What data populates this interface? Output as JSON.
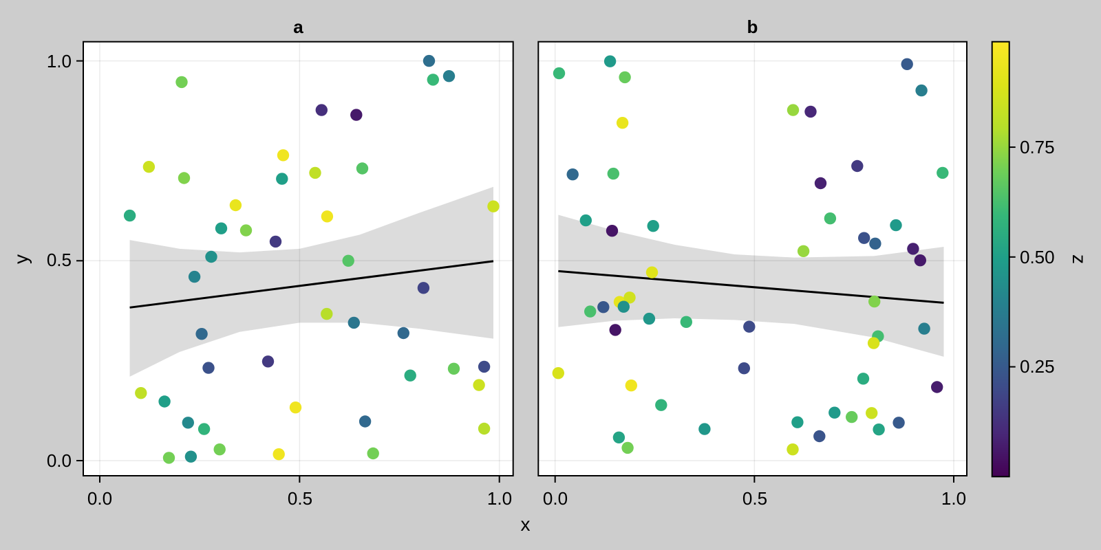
{
  "style": {
    "background": "#cdcdcd",
    "panel_background": "#ffffff",
    "grid_color": "rgba(0,0,0,0.08)",
    "ribbon_color": "#dcdcdc",
    "line_color": "#000000",
    "frame_color": "#000000",
    "viridis_stops": [
      "#440154",
      "#482878",
      "#3e4a89",
      "#31688e",
      "#26828e",
      "#1f9e89",
      "#35b779",
      "#6ece58",
      "#b5de2b",
      "#dce319",
      "#fde725"
    ]
  },
  "chart_data": {
    "type": "scatter",
    "xlabel": "x",
    "ylabel": "y",
    "x_ticks": [
      0.0,
      0.5,
      1.0
    ],
    "x_tick_labels": [
      "0.0",
      "0.5",
      "1.0"
    ],
    "y_ticks": [
      0.0,
      0.5,
      1.0
    ],
    "y_tick_labels": [
      "0.0",
      "0.5",
      "1.0"
    ],
    "grid": true,
    "colorbar": {
      "label": "z",
      "min": 0,
      "max": 0.99,
      "ticks": [
        0.25,
        0.5,
        0.75
      ],
      "tick_labels": [
        "0.25",
        "0.50",
        "0.75"
      ],
      "colormap": "viridis"
    },
    "panels": [
      {
        "title": "a",
        "regression": {
          "x1": 0.075,
          "y1": 0.383,
          "x2": 0.985,
          "y2": 0.499
        },
        "ribbon": [
          [
            0.075,
            0.21,
            0.552
          ],
          [
            0.2,
            0.272,
            0.53
          ],
          [
            0.35,
            0.322,
            0.521
          ],
          [
            0.5,
            0.345,
            0.53
          ],
          [
            0.65,
            0.345,
            0.565
          ],
          [
            0.8,
            0.33,
            0.62
          ],
          [
            0.985,
            0.305,
            0.685
          ]
        ],
        "points": [
          {
            "x": 0.205,
            "y": 0.947,
            "z": 0.7
          },
          {
            "x": 0.459,
            "y": 0.764,
            "z": 0.95
          },
          {
            "x": 0.123,
            "y": 0.735,
            "z": 0.85
          },
          {
            "x": 0.824,
            "y": 1.0,
            "z": 0.32
          },
          {
            "x": 0.834,
            "y": 0.953,
            "z": 0.6
          },
          {
            "x": 0.874,
            "y": 0.962,
            "z": 0.38
          },
          {
            "x": 0.555,
            "y": 0.877,
            "z": 0.12
          },
          {
            "x": 0.642,
            "y": 0.865,
            "z": 0.06
          },
          {
            "x": 0.657,
            "y": 0.731,
            "z": 0.65
          },
          {
            "x": 0.211,
            "y": 0.707,
            "z": 0.72
          },
          {
            "x": 0.456,
            "y": 0.705,
            "z": 0.5
          },
          {
            "x": 0.34,
            "y": 0.639,
            "z": 0.93
          },
          {
            "x": 0.075,
            "y": 0.613,
            "z": 0.55
          },
          {
            "x": 0.304,
            "y": 0.581,
            "z": 0.5
          },
          {
            "x": 0.366,
            "y": 0.576,
            "z": 0.72
          },
          {
            "x": 0.44,
            "y": 0.548,
            "z": 0.15
          },
          {
            "x": 0.279,
            "y": 0.51,
            "z": 0.45
          },
          {
            "x": 0.237,
            "y": 0.46,
            "z": 0.4
          },
          {
            "x": 0.539,
            "y": 0.72,
            "z": 0.82
          },
          {
            "x": 0.569,
            "y": 0.611,
            "z": 0.95
          },
          {
            "x": 0.985,
            "y": 0.636,
            "z": 0.85
          },
          {
            "x": 0.622,
            "y": 0.5,
            "z": 0.65
          },
          {
            "x": 0.81,
            "y": 0.432,
            "z": 0.18
          },
          {
            "x": 0.568,
            "y": 0.367,
            "z": 0.8
          },
          {
            "x": 0.636,
            "y": 0.345,
            "z": 0.35
          },
          {
            "x": 0.255,
            "y": 0.317,
            "z": 0.3
          },
          {
            "x": 0.421,
            "y": 0.248,
            "z": 0.15
          },
          {
            "x": 0.272,
            "y": 0.232,
            "z": 0.22
          },
          {
            "x": 0.103,
            "y": 0.169,
            "z": 0.82
          },
          {
            "x": 0.162,
            "y": 0.148,
            "z": 0.5
          },
          {
            "x": 0.49,
            "y": 0.133,
            "z": 0.95
          },
          {
            "x": 0.221,
            "y": 0.095,
            "z": 0.42
          },
          {
            "x": 0.261,
            "y": 0.079,
            "z": 0.58
          },
          {
            "x": 0.3,
            "y": 0.028,
            "z": 0.7
          },
          {
            "x": 0.173,
            "y": 0.007,
            "z": 0.7
          },
          {
            "x": 0.228,
            "y": 0.01,
            "z": 0.45
          },
          {
            "x": 0.448,
            "y": 0.016,
            "z": 0.95
          },
          {
            "x": 0.76,
            "y": 0.319,
            "z": 0.3
          },
          {
            "x": 0.886,
            "y": 0.23,
            "z": 0.68
          },
          {
            "x": 0.962,
            "y": 0.235,
            "z": 0.2
          },
          {
            "x": 0.777,
            "y": 0.213,
            "z": 0.55
          },
          {
            "x": 0.949,
            "y": 0.189,
            "z": 0.85
          },
          {
            "x": 0.664,
            "y": 0.098,
            "z": 0.3
          },
          {
            "x": 0.962,
            "y": 0.08,
            "z": 0.8
          },
          {
            "x": 0.684,
            "y": 0.018,
            "z": 0.7
          }
        ]
      },
      {
        "title": "b",
        "regression": {
          "x1": 0.008,
          "y1": 0.474,
          "x2": 0.975,
          "y2": 0.395
        },
        "ribbon": [
          [
            0.008,
            0.334,
            0.615
          ],
          [
            0.15,
            0.35,
            0.575
          ],
          [
            0.3,
            0.356,
            0.54
          ],
          [
            0.45,
            0.352,
            0.516
          ],
          [
            0.6,
            0.342,
            0.508
          ],
          [
            0.8,
            0.308,
            0.512
          ],
          [
            0.975,
            0.26,
            0.535
          ]
        ],
        "points": [
          {
            "x": 0.138,
            "y": 0.999,
            "z": 0.48
          },
          {
            "x": 0.01,
            "y": 0.969,
            "z": 0.6
          },
          {
            "x": 0.175,
            "y": 0.959,
            "z": 0.68
          },
          {
            "x": 0.169,
            "y": 0.845,
            "z": 0.93
          },
          {
            "x": 0.044,
            "y": 0.716,
            "z": 0.3
          },
          {
            "x": 0.146,
            "y": 0.718,
            "z": 0.63
          },
          {
            "x": 0.883,
            "y": 0.992,
            "z": 0.25
          },
          {
            "x": 0.919,
            "y": 0.926,
            "z": 0.38
          },
          {
            "x": 0.597,
            "y": 0.877,
            "z": 0.75
          },
          {
            "x": 0.641,
            "y": 0.873,
            "z": 0.1
          },
          {
            "x": 0.758,
            "y": 0.737,
            "z": 0.15
          },
          {
            "x": 0.972,
            "y": 0.72,
            "z": 0.6
          },
          {
            "x": 0.077,
            "y": 0.601,
            "z": 0.5
          },
          {
            "x": 0.143,
            "y": 0.575,
            "z": 0.05
          },
          {
            "x": 0.246,
            "y": 0.587,
            "z": 0.5
          },
          {
            "x": 0.243,
            "y": 0.471,
            "z": 0.9
          },
          {
            "x": 0.162,
            "y": 0.397,
            "z": 0.92
          },
          {
            "x": 0.187,
            "y": 0.408,
            "z": 0.86
          },
          {
            "x": 0.172,
            "y": 0.385,
            "z": 0.45
          },
          {
            "x": 0.121,
            "y": 0.384,
            "z": 0.24
          },
          {
            "x": 0.088,
            "y": 0.373,
            "z": 0.63
          },
          {
            "x": 0.236,
            "y": 0.355,
            "z": 0.47
          },
          {
            "x": 0.329,
            "y": 0.347,
            "z": 0.6
          },
          {
            "x": 0.151,
            "y": 0.327,
            "z": 0.05
          },
          {
            "x": 0.487,
            "y": 0.335,
            "z": 0.2
          },
          {
            "x": 0.666,
            "y": 0.694,
            "z": 0.08
          },
          {
            "x": 0.69,
            "y": 0.606,
            "z": 0.62
          },
          {
            "x": 0.855,
            "y": 0.589,
            "z": 0.48
          },
          {
            "x": 0.775,
            "y": 0.557,
            "z": 0.22
          },
          {
            "x": 0.803,
            "y": 0.543,
            "z": 0.28
          },
          {
            "x": 0.898,
            "y": 0.53,
            "z": 0.08
          },
          {
            "x": 0.916,
            "y": 0.501,
            "z": 0.06
          },
          {
            "x": 0.623,
            "y": 0.524,
            "z": 0.75
          },
          {
            "x": 0.801,
            "y": 0.398,
            "z": 0.72
          },
          {
            "x": 0.926,
            "y": 0.33,
            "z": 0.38
          },
          {
            "x": 0.81,
            "y": 0.311,
            "z": 0.62
          },
          {
            "x": 0.799,
            "y": 0.294,
            "z": 0.88
          },
          {
            "x": 0.008,
            "y": 0.219,
            "z": 0.88
          },
          {
            "x": 0.191,
            "y": 0.188,
            "z": 0.95
          },
          {
            "x": 0.266,
            "y": 0.139,
            "z": 0.58
          },
          {
            "x": 0.375,
            "y": 0.079,
            "z": 0.47
          },
          {
            "x": 0.16,
            "y": 0.058,
            "z": 0.52
          },
          {
            "x": 0.182,
            "y": 0.032,
            "z": 0.7
          },
          {
            "x": 0.474,
            "y": 0.231,
            "z": 0.2
          },
          {
            "x": 0.773,
            "y": 0.205,
            "z": 0.55
          },
          {
            "x": 0.958,
            "y": 0.184,
            "z": 0.07
          },
          {
            "x": 0.701,
            "y": 0.12,
            "z": 0.48
          },
          {
            "x": 0.744,
            "y": 0.109,
            "z": 0.68
          },
          {
            "x": 0.794,
            "y": 0.119,
            "z": 0.85
          },
          {
            "x": 0.608,
            "y": 0.096,
            "z": 0.5
          },
          {
            "x": 0.812,
            "y": 0.078,
            "z": 0.52
          },
          {
            "x": 0.862,
            "y": 0.095,
            "z": 0.25
          },
          {
            "x": 0.663,
            "y": 0.061,
            "z": 0.23
          },
          {
            "x": 0.596,
            "y": 0.028,
            "z": 0.85
          }
        ]
      }
    ]
  }
}
